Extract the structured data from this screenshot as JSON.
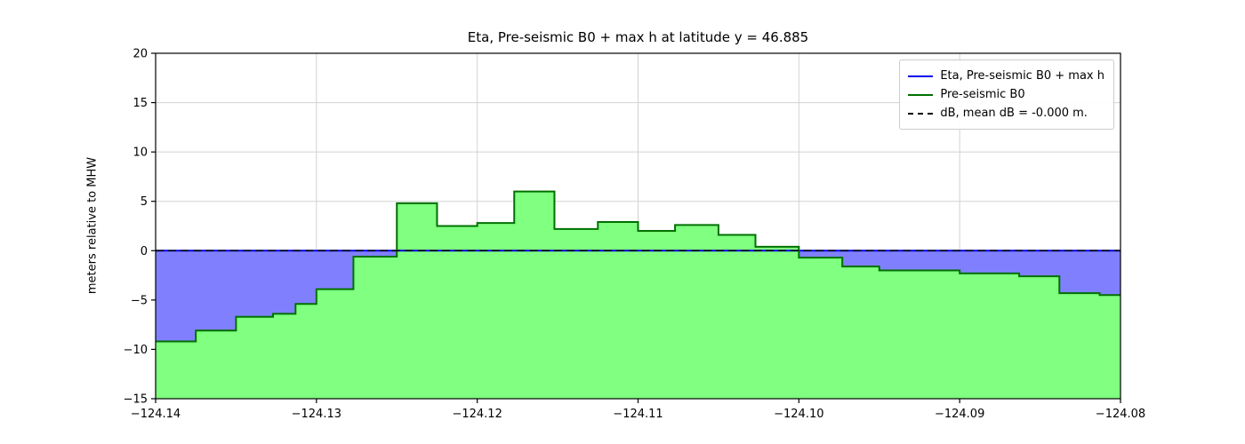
{
  "figure": {
    "title": "Eta, Pre-seismic B0 + max h at latitude y = 46.885",
    "ylabel": "meters relative to MHW"
  },
  "chart_data": {
    "type": "area",
    "title": "Eta, Pre-seismic B0 + max h at latitude y = 46.885",
    "xlabel": "",
    "ylabel": "meters relative to MHW",
    "xlim": [
      -124.14,
      -124.08
    ],
    "ylim": [
      -15,
      20
    ],
    "grid": true,
    "grid_color": "#d2d2d2",
    "x_ticks": {
      "values": [
        -124.14,
        -124.13,
        -124.12,
        -124.11,
        -124.1,
        -124.09,
        -124.08
      ],
      "labels": [
        "−124.14",
        "−124.13",
        "−124.12",
        "−124.11",
        "−124.10",
        "−124.09",
        "−124.08"
      ]
    },
    "y_ticks": {
      "values": [
        -15,
        -10,
        -5,
        0,
        5,
        10,
        15,
        20
      ],
      "labels": [
        "−15",
        "−10",
        "−5",
        "0",
        "5",
        "10",
        "15",
        "20"
      ]
    },
    "legend": {
      "position": "upper right",
      "entries": [
        {
          "label": "Eta, Pre-seismic B0 + max h",
          "color": "#0000ee",
          "style": "solid"
        },
        {
          "label": "Pre-seismic B0",
          "color": "#007000",
          "style": "solid"
        },
        {
          "label": "dB, mean dB = -0.000 m.",
          "color": "#000000",
          "style": "dashed"
        }
      ]
    },
    "series": [
      {
        "name": "Eta, Pre-seismic B0 + max h",
        "type": "hline",
        "y": 0,
        "color": "#0000ee",
        "linewidth": 2
      },
      {
        "name": "Pre-seismic B0",
        "type": "step",
        "color": "#007000",
        "fill": "#80ff80",
        "linewidth": 2,
        "x_end": -124.08,
        "steps": [
          [
            -124.14,
            -9.2
          ],
          [
            -124.1375,
            -8.1
          ],
          [
            -124.135,
            -6.7
          ],
          [
            -124.1327,
            -6.4
          ],
          [
            -124.1313,
            -5.4
          ],
          [
            -124.13,
            -3.9
          ],
          [
            -124.1277,
            -0.6
          ],
          [
            -124.125,
            4.8
          ],
          [
            -124.1225,
            2.5
          ],
          [
            -124.12,
            2.8
          ],
          [
            -124.1177,
            6.0
          ],
          [
            -124.1152,
            2.2
          ],
          [
            -124.1125,
            2.9
          ],
          [
            -124.11,
            2.0
          ],
          [
            -124.1077,
            2.6
          ],
          [
            -124.105,
            1.6
          ],
          [
            -124.1027,
            0.4
          ],
          [
            -124.1,
            -0.7
          ],
          [
            -124.0973,
            -1.6
          ],
          [
            -124.095,
            -2.0
          ],
          [
            -124.09,
            -2.3
          ],
          [
            -124.0863,
            -2.6
          ],
          [
            -124.0838,
            -4.3
          ],
          [
            -124.0813,
            -4.5
          ]
        ]
      },
      {
        "name": "dB",
        "type": "hline",
        "y": 0,
        "color": "#000000",
        "linewidth": 1.5,
        "dashed": true
      }
    ],
    "fills": {
      "water_fill": "#8080ff",
      "land_fill": "#80ff80"
    }
  }
}
